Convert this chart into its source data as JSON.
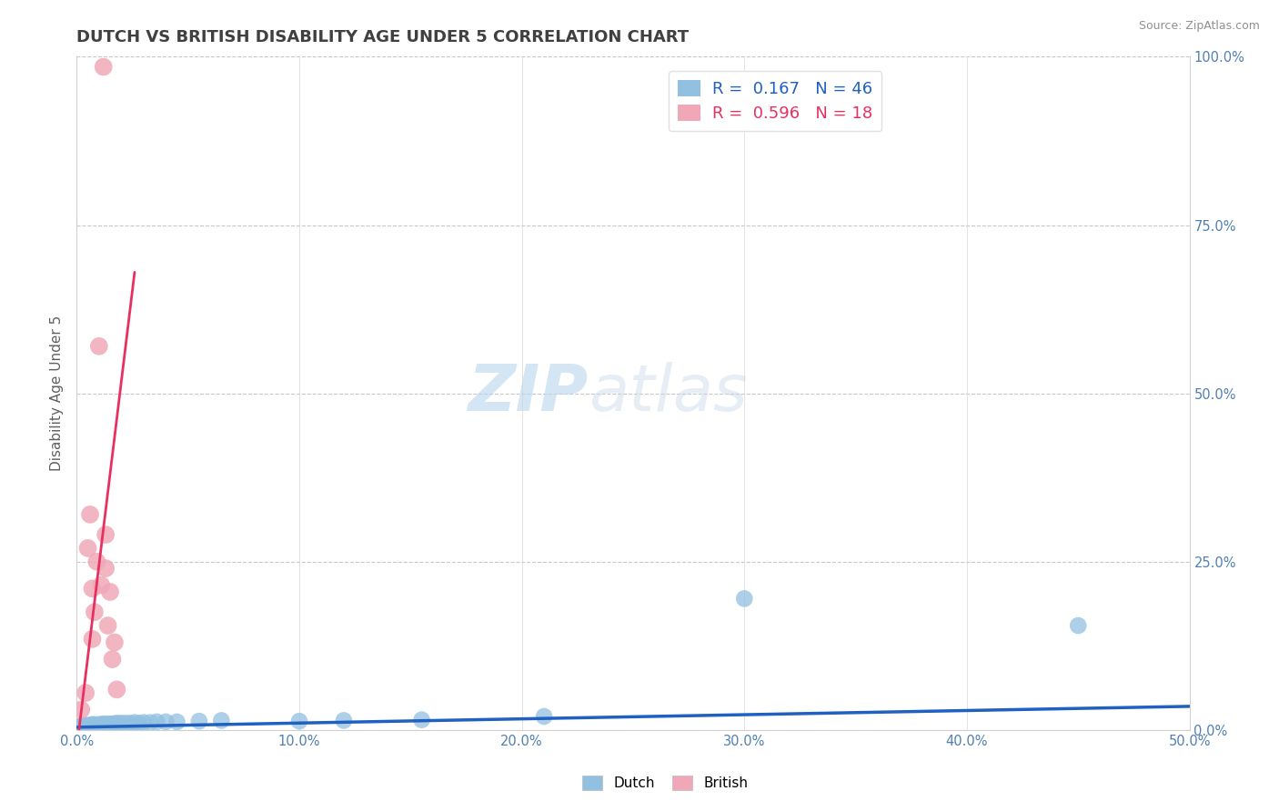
{
  "title": "DUTCH VS BRITISH DISABILITY AGE UNDER 5 CORRELATION CHART",
  "source": "Source: ZipAtlas.com",
  "ylabel": "Disability Age Under 5",
  "xlim": [
    0.0,
    0.5
  ],
  "ylim": [
    0.0,
    1.0
  ],
  "xtick_labels": [
    "0.0%",
    "",
    "10.0%",
    "",
    "20.0%",
    "",
    "30.0%",
    "",
    "40.0%",
    "",
    "50.0%"
  ],
  "xtick_vals": [
    0.0,
    0.05,
    0.1,
    0.15,
    0.2,
    0.25,
    0.3,
    0.35,
    0.4,
    0.45,
    0.5
  ],
  "ytick_labels_right": [
    "100.0%",
    "75.0%",
    "50.0%",
    "25.0%",
    "0.0%"
  ],
  "ytick_vals_right": [
    1.0,
    0.75,
    0.5,
    0.25,
    0.0
  ],
  "grid_yticks": [
    0.0,
    0.25,
    0.5,
    0.75,
    1.0
  ],
  "dutch_R": 0.167,
  "dutch_N": 46,
  "british_R": 0.596,
  "british_N": 18,
  "dutch_color": "#92c0e0",
  "british_color": "#f0a8b8",
  "dutch_line_color": "#2060c0",
  "british_line_color": "#e83060",
  "background_color": "#ffffff",
  "title_color": "#404040",
  "dutch_scatter_x": [
    0.001,
    0.002,
    0.002,
    0.003,
    0.003,
    0.004,
    0.004,
    0.005,
    0.005,
    0.006,
    0.006,
    0.007,
    0.007,
    0.008,
    0.008,
    0.009,
    0.01,
    0.01,
    0.011,
    0.012,
    0.012,
    0.013,
    0.014,
    0.015,
    0.016,
    0.017,
    0.018,
    0.019,
    0.02,
    0.022,
    0.024,
    0.026,
    0.028,
    0.03,
    0.033,
    0.036,
    0.04,
    0.045,
    0.055,
    0.065,
    0.1,
    0.12,
    0.155,
    0.21,
    0.3,
    0.45
  ],
  "dutch_scatter_y": [
    0.004,
    0.005,
    0.006,
    0.005,
    0.007,
    0.006,
    0.007,
    0.005,
    0.006,
    0.006,
    0.007,
    0.007,
    0.008,
    0.006,
    0.008,
    0.007,
    0.007,
    0.008,
    0.008,
    0.007,
    0.009,
    0.008,
    0.009,
    0.008,
    0.009,
    0.009,
    0.01,
    0.009,
    0.01,
    0.01,
    0.01,
    0.011,
    0.01,
    0.011,
    0.011,
    0.012,
    0.012,
    0.012,
    0.013,
    0.014,
    0.013,
    0.014,
    0.015,
    0.02,
    0.195,
    0.155
  ],
  "british_scatter_x": [
    0.002,
    0.004,
    0.005,
    0.006,
    0.007,
    0.007,
    0.008,
    0.009,
    0.01,
    0.011,
    0.012,
    0.013,
    0.013,
    0.014,
    0.015,
    0.016,
    0.017,
    0.018
  ],
  "british_scatter_y": [
    0.03,
    0.055,
    0.27,
    0.32,
    0.135,
    0.21,
    0.175,
    0.25,
    0.57,
    0.215,
    0.985,
    0.24,
    0.29,
    0.155,
    0.205,
    0.105,
    0.13,
    0.06
  ],
  "dutch_trend_x": [
    0.0,
    0.5
  ],
  "dutch_trend_y": [
    0.004,
    0.035
  ],
  "british_trend_x": [
    0.001,
    0.026
  ],
  "british_trend_y": [
    0.0,
    0.68
  ]
}
